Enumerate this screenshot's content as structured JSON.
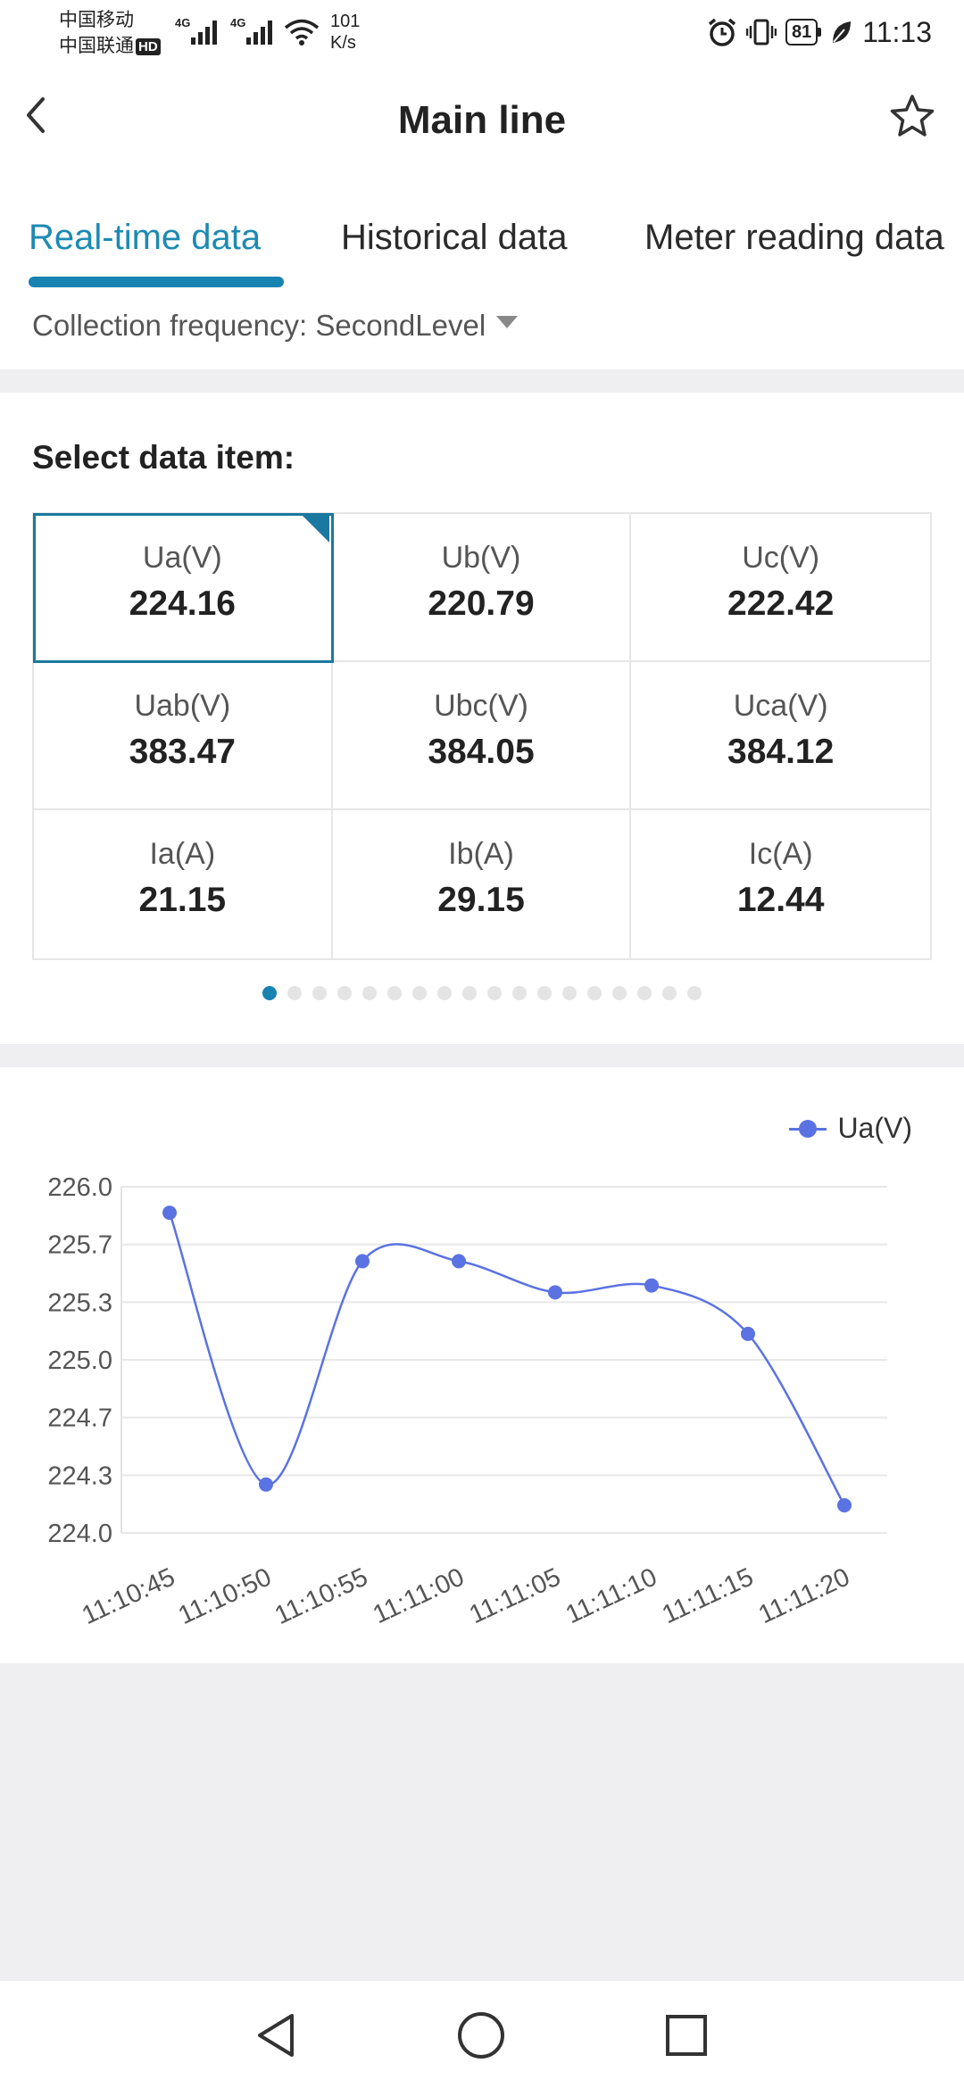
{
  "status_bar": {
    "carrier_1": "中国移动",
    "carrier_2": "中国联通",
    "hd_badge": "HD",
    "net_type_1": "4G",
    "net_type_2": "4G",
    "speed_value": "101",
    "speed_unit": "K/s",
    "battery": "81",
    "time": "11:13"
  },
  "header": {
    "title": "Main line"
  },
  "tabs": [
    {
      "label": "Real-time data",
      "active": true
    },
    {
      "label": "Historical data",
      "active": false
    },
    {
      "label": "Meter reading data",
      "active": false
    }
  ],
  "collection": {
    "label": "Collection frequency: SecondLevel"
  },
  "data_items": {
    "title": "Select data item:",
    "items": [
      {
        "label": "Ua(V)",
        "value": "224.16",
        "selected": true
      },
      {
        "label": "Ub(V)",
        "value": "220.79"
      },
      {
        "label": "Uc(V)",
        "value": "222.42"
      },
      {
        "label": "Uab(V)",
        "value": "383.47"
      },
      {
        "label": "Ubc(V)",
        "value": "384.05"
      },
      {
        "label": "Uca(V)",
        "value": "384.12"
      },
      {
        "label": "Ia(A)",
        "value": "21.15"
      },
      {
        "label": "Ib(A)",
        "value": "29.15"
      },
      {
        "label": "Ic(A)",
        "value": "12.44"
      }
    ],
    "page_count": 18,
    "current_page": 0
  },
  "colors": {
    "accent": "#1683b0",
    "series": "#5b72e2",
    "grid": "#e8e8e8"
  },
  "chart_data": {
    "type": "line",
    "x": [
      "11:10:45",
      "11:10:50",
      "11:10:55",
      "11:11:00",
      "11:11:05",
      "11:11:10",
      "11:11:15",
      "11:11:20"
    ],
    "series": [
      {
        "name": "Ua(V)",
        "values": [
          225.85,
          224.28,
          225.57,
          225.57,
          225.39,
          225.43,
          225.15,
          224.16
        ]
      }
    ],
    "yticks": [
      "224.0",
      "224.3",
      "224.7",
      "225.0",
      "225.3",
      "225.7",
      "226.0"
    ],
    "ylim": [
      224.0,
      226.0
    ],
    "legend": "top-right",
    "grid": true,
    "smooth": true
  }
}
